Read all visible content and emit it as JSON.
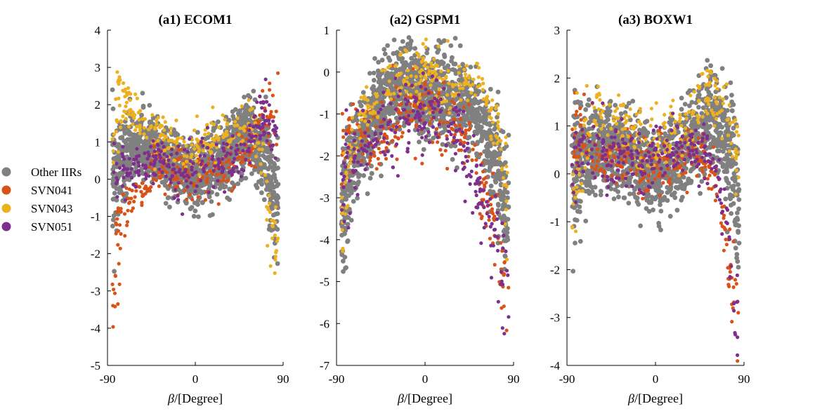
{
  "legend": {
    "placement": "left",
    "entries": [
      {
        "label": "Other IIRs",
        "color": "#808080"
      },
      {
        "label": "SVN041",
        "color": "#D95319"
      },
      {
        "label": "SVN043",
        "color": "#EDB120"
      },
      {
        "label": "SVN051",
        "color": "#7E2F8E"
      }
    ]
  },
  "chart_data": [
    {
      "type": "scatter",
      "title": "(a1) ECOM1",
      "xlabel": "β/[Degree]",
      "xlim": [
        -90,
        90
      ],
      "xticks": [
        "-90",
        "0",
        "90"
      ],
      "ylim": [
        -5,
        4
      ],
      "yticks": [
        "-5",
        "-4",
        "-3",
        "-2",
        "-1",
        "0",
        "1",
        "2",
        "3",
        "4"
      ],
      "series": [
        {
          "name": "Other IIRs",
          "color": "#808080",
          "trend": [
            [
              -84,
              0.2
            ],
            [
              -70,
              0.6
            ],
            [
              -55,
              0.9
            ],
            [
              -40,
              0.7
            ],
            [
              -25,
              0.3
            ],
            [
              -10,
              0.1
            ],
            [
              0,
              0.1
            ],
            [
              15,
              0.3
            ],
            [
              30,
              0.6
            ],
            [
              45,
              1.0
            ],
            [
              55,
              1.3
            ],
            [
              65,
              0.9
            ],
            [
              75,
              0.4
            ],
            [
              82,
              -0.6
            ]
          ],
          "spread": 0.45
        },
        {
          "name": "SVN041",
          "color": "#D95319",
          "trend": [
            [
              -84,
              -3.2
            ],
            [
              -80,
              -1.6
            ],
            [
              -75,
              -1.0
            ],
            [
              -65,
              -0.4
            ],
            [
              -55,
              -0.1
            ],
            [
              -45,
              0.2
            ],
            [
              -30,
              0.3
            ],
            [
              -15,
              0.2
            ],
            [
              0,
              0.2
            ],
            [
              15,
              0.3
            ],
            [
              30,
              0.4
            ],
            [
              45,
              0.6
            ],
            [
              55,
              0.8
            ],
            [
              65,
              1.2
            ],
            [
              72,
              1.6
            ],
            [
              78,
              1.8
            ],
            [
              83,
              1.6
            ]
          ],
          "spread": 0.35
        },
        {
          "name": "SVN043",
          "color": "#EDB120",
          "trend": [
            [
              -84,
              1.2
            ],
            [
              -78,
              2.2
            ],
            [
              -70,
              1.9
            ],
            [
              -60,
              1.6
            ],
            [
              -50,
              1.3
            ],
            [
              -40,
              1.1
            ],
            [
              -30,
              1.0
            ],
            [
              -20,
              0.9
            ],
            [
              -10,
              0.8
            ],
            [
              0,
              0.8
            ],
            [
              10,
              0.9
            ],
            [
              20,
              1.0
            ],
            [
              30,
              1.2
            ],
            [
              40,
              1.3
            ],
            [
              50,
              1.4
            ],
            [
              60,
              1.3
            ],
            [
              70,
              0.2
            ],
            [
              78,
              -1.6
            ],
            [
              82,
              -1.9
            ]
          ],
          "spread": 0.35
        },
        {
          "name": "SVN051",
          "color": "#7E2F8E",
          "trend": [
            [
              -84,
              0.1
            ],
            [
              -75,
              0.3
            ],
            [
              -65,
              0.2
            ],
            [
              -55,
              0.3
            ],
            [
              -45,
              0.4
            ],
            [
              -35,
              0.4
            ],
            [
              -25,
              0.3
            ],
            [
              -15,
              0.1
            ],
            [
              0,
              0.2
            ],
            [
              15,
              0.3
            ],
            [
              30,
              0.4
            ],
            [
              45,
              0.6
            ],
            [
              55,
              0.9
            ],
            [
              62,
              1.3
            ],
            [
              70,
              1.6
            ],
            [
              78,
              1.4
            ],
            [
              83,
              0.6
            ]
          ],
          "spread": 0.35
        }
      ]
    },
    {
      "type": "scatter",
      "title": "(a2) GSPM1",
      "xlabel": "β/[Degree]",
      "xlim": [
        -90,
        90
      ],
      "xticks": [
        "-90",
        "0",
        "90"
      ],
      "ylim": [
        -7,
        1
      ],
      "yticks": [
        "-7",
        "-6",
        "-5",
        "-4",
        "-3",
        "-2",
        "-1",
        "0",
        "1"
      ],
      "series": [
        {
          "name": "Other IIRs",
          "color": "#808080",
          "trend": [
            [
              -84,
              -3.2
            ],
            [
              -78,
              -2.6
            ],
            [
              -70,
              -1.9
            ],
            [
              -60,
              -1.4
            ],
            [
              -50,
              -1.0
            ],
            [
              -40,
              -0.6
            ],
            [
              -30,
              -0.4
            ],
            [
              -20,
              -0.3
            ],
            [
              -10,
              -0.4
            ],
            [
              0,
              -0.6
            ],
            [
              10,
              -0.6
            ],
            [
              20,
              -0.5
            ],
            [
              30,
              -0.6
            ],
            [
              40,
              -0.7
            ],
            [
              50,
              -0.9
            ],
            [
              60,
              -1.4
            ],
            [
              70,
              -1.9
            ],
            [
              78,
              -2.6
            ],
            [
              84,
              -3.4
            ]
          ],
          "spread": 0.5
        },
        {
          "name": "SVN041",
          "color": "#D95319",
          "trend": [
            [
              -84,
              -2.3
            ],
            [
              -78,
              -1.4
            ],
            [
              -70,
              -1.3
            ],
            [
              -60,
              -1.5
            ],
            [
              -50,
              -1.5
            ],
            [
              -40,
              -1.4
            ],
            [
              -30,
              -1.3
            ],
            [
              -20,
              -1.2
            ],
            [
              -10,
              -1.0
            ],
            [
              0,
              -0.9
            ],
            [
              10,
              -1.0
            ],
            [
              20,
              -1.1
            ],
            [
              30,
              -1.3
            ],
            [
              40,
              -1.6
            ],
            [
              50,
              -2.0
            ],
            [
              60,
              -2.8
            ],
            [
              70,
              -3.5
            ],
            [
              78,
              -4.6
            ],
            [
              84,
              -5.2
            ]
          ],
          "spread": 0.45
        },
        {
          "name": "SVN043",
          "color": "#EDB120",
          "trend": [
            [
              -84,
              -3.4
            ],
            [
              -78,
              -2.0
            ],
            [
              -70,
              -1.3
            ],
            [
              -60,
              -0.9
            ],
            [
              -50,
              -0.6
            ],
            [
              -40,
              -0.4
            ],
            [
              -30,
              -0.2
            ],
            [
              -20,
              -0.2
            ],
            [
              -10,
              -0.2
            ],
            [
              0,
              -0.1
            ],
            [
              10,
              -0.2
            ],
            [
              20,
              -0.3
            ],
            [
              30,
              -0.3
            ],
            [
              40,
              -0.2
            ],
            [
              50,
              -0.1
            ],
            [
              60,
              -0.5
            ],
            [
              70,
              -1.2
            ],
            [
              78,
              -2.2
            ],
            [
              84,
              -3.2
            ]
          ],
          "spread": 0.35
        },
        {
          "name": "SVN051",
          "color": "#7E2F8E",
          "trend": [
            [
              -84,
              -3.0
            ],
            [
              -78,
              -2.4
            ],
            [
              -70,
              -2.0
            ],
            [
              -60,
              -1.7
            ],
            [
              -50,
              -1.5
            ],
            [
              -40,
              -1.4
            ],
            [
              -30,
              -1.3
            ],
            [
              -20,
              -1.1
            ],
            [
              -10,
              -1.0
            ],
            [
              0,
              -0.9
            ],
            [
              10,
              -1.0
            ],
            [
              20,
              -1.2
            ],
            [
              30,
              -1.5
            ],
            [
              40,
              -2.0
            ],
            [
              50,
              -2.6
            ],
            [
              60,
              -3.2
            ],
            [
              70,
              -3.8
            ],
            [
              78,
              -4.5
            ],
            [
              84,
              -5.2
            ]
          ],
          "spread": 0.45
        }
      ]
    },
    {
      "type": "scatter",
      "title": "(a3) BOXW1",
      "xlabel": "β/[Degree]",
      "xlim": [
        -90,
        90
      ],
      "xticks": [
        "-90",
        "0",
        "90"
      ],
      "ylim": [
        -4,
        3
      ],
      "yticks": [
        "-4",
        "-3",
        "-2",
        "-1",
        "0",
        "1",
        "2",
        "3"
      ],
      "series": [
        {
          "name": "Other IIRs",
          "color": "#808080",
          "trend": [
            [
              -84,
              0.0
            ],
            [
              -75,
              0.3
            ],
            [
              -65,
              0.5
            ],
            [
              -55,
              0.6
            ],
            [
              -45,
              0.6
            ],
            [
              -35,
              0.5
            ],
            [
              -25,
              0.3
            ],
            [
              -15,
              0.1
            ],
            [
              0,
              0.0
            ],
            [
              15,
              0.2
            ],
            [
              30,
              0.5
            ],
            [
              45,
              0.9
            ],
            [
              55,
              1.2
            ],
            [
              65,
              1.0
            ],
            [
              75,
              0.4
            ],
            [
              84,
              -0.5
            ]
          ],
          "spread": 0.45
        },
        {
          "name": "SVN041",
          "color": "#D95319",
          "trend": [
            [
              -84,
              0.3
            ],
            [
              -78,
              0.9
            ],
            [
              -75,
              1.3
            ],
            [
              -70,
              0.6
            ],
            [
              -60,
              0.4
            ],
            [
              -50,
              0.3
            ],
            [
              -40,
              0.3
            ],
            [
              -30,
              0.3
            ],
            [
              -20,
              0.2
            ],
            [
              -10,
              0.1
            ],
            [
              0,
              0.2
            ],
            [
              10,
              0.3
            ],
            [
              20,
              0.3
            ],
            [
              30,
              0.4
            ],
            [
              40,
              0.5
            ],
            [
              50,
              0.4
            ],
            [
              60,
              0.0
            ],
            [
              68,
              -0.8
            ],
            [
              75,
              -1.8
            ],
            [
              80,
              -2.8
            ],
            [
              84,
              -3.2
            ]
          ],
          "spread": 0.3
        },
        {
          "name": "SVN043",
          "color": "#EDB120",
          "trend": [
            [
              -84,
              -0.6
            ],
            [
              -78,
              0.3
            ],
            [
              -70,
              0.8
            ],
            [
              -60,
              1.0
            ],
            [
              -50,
              1.1
            ],
            [
              -40,
              1.1
            ],
            [
              -30,
              1.0
            ],
            [
              -20,
              0.8
            ],
            [
              -10,
              0.6
            ],
            [
              0,
              0.6
            ],
            [
              10,
              0.8
            ],
            [
              20,
              0.9
            ],
            [
              30,
              1.0
            ],
            [
              40,
              1.3
            ],
            [
              50,
              1.6
            ],
            [
              60,
              1.5
            ],
            [
              70,
              1.2
            ],
            [
              78,
              0.7
            ],
            [
              84,
              0.3
            ]
          ],
          "spread": 0.35
        },
        {
          "name": "SVN051",
          "color": "#7E2F8E",
          "trend": [
            [
              -84,
              0.3
            ],
            [
              -75,
              0.5
            ],
            [
              -65,
              0.5
            ],
            [
              -55,
              0.4
            ],
            [
              -45,
              0.4
            ],
            [
              -35,
              0.4
            ],
            [
              -25,
              0.3
            ],
            [
              -15,
              0.2
            ],
            [
              0,
              0.3
            ],
            [
              15,
              0.4
            ],
            [
              30,
              0.5
            ],
            [
              45,
              0.5
            ],
            [
              55,
              0.4
            ],
            [
              62,
              0.0
            ],
            [
              68,
              -0.6
            ],
            [
              74,
              -1.4
            ],
            [
              80,
              -2.5
            ],
            [
              84,
              -3.3
            ]
          ],
          "spread": 0.3
        }
      ]
    }
  ]
}
